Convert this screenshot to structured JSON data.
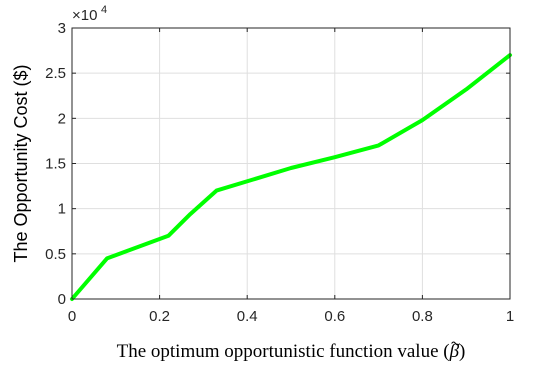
{
  "chart_data": {
    "type": "line",
    "x": [
      0,
      0.08,
      0.22,
      0.27,
      0.33,
      0.5,
      0.6,
      0.7,
      0.8,
      0.9,
      1.0
    ],
    "series": [
      {
        "values": [
          0,
          4500,
          7000,
          9400,
          12000,
          14500,
          15700,
          17000,
          19800,
          23200,
          27000
        ]
      }
    ],
    "line_color": "#00ff00",
    "xlabel_prefix": "The optimum opportunistic function value (",
    "xlabel_symbol": "β",
    "xlabel_suffix": ")",
    "ylabel": "The Opportunity Cost ($)",
    "xlim": [
      0,
      1
    ],
    "ylim": [
      0,
      30000
    ],
    "xticks": [
      "0",
      "0.2",
      "0.4",
      "0.6",
      "0.8",
      "1"
    ],
    "yticks": [
      "0",
      "0.5",
      "1",
      "1.5",
      "2",
      "2.5",
      "3"
    ],
    "y_exponent_base": "×10",
    "y_exponent_power": "4",
    "grid": true
  }
}
